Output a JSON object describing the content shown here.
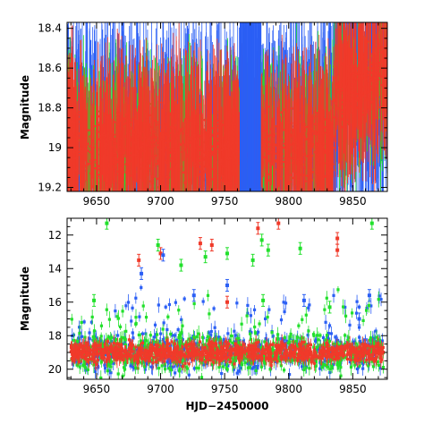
{
  "colors": {
    "red": "#f03a2a",
    "green": "#22e02c",
    "blue": "#2b5ff5"
  },
  "chart_data": [
    {
      "type": "scatter",
      "panel": "top",
      "xlabel": "",
      "ylabel": "Magnitude",
      "xlim": [
        9627,
        9877
      ],
      "ylim": [
        18.37,
        19.22
      ],
      "y_inverted": true,
      "x_ticks": [
        9650,
        9700,
        9750,
        9800,
        9850
      ],
      "x_tick_labels": [
        "9650",
        "9700",
        "9750",
        "9800",
        "9850"
      ],
      "y_ticks": [
        18.4,
        18.6,
        18.8,
        19,
        19.2
      ],
      "y_tick_labels": [
        "18.4",
        "18.6",
        "18.8",
        "19",
        "19.2"
      ],
      "grid": false,
      "legend": "none",
      "series": [
        {
          "color": "red",
          "x": [
            9628,
            9655,
            9680,
            9700,
            9720,
            9740,
            9760,
            9780,
            9800,
            9820,
            9840,
            9855,
            9870
          ],
          "y": [
            19.05,
            18.98,
            19.0,
            19.02,
            18.97,
            18.92,
            19.0,
            18.95,
            18.88,
            18.9,
            18.75,
            18.7,
            18.75
          ]
        },
        {
          "color": "green",
          "x": [
            9630,
            9660,
            9690,
            9710,
            9735,
            9760,
            9790,
            9815,
            9845,
            9870
          ],
          "y": [
            19.1,
            19.0,
            18.9,
            18.85,
            18.8,
            19.05,
            18.7,
            18.8,
            18.65,
            18.6
          ]
        },
        {
          "color": "blue",
          "x": [
            9632,
            9665,
            9695,
            9725,
            9755,
            9775,
            9800,
            9830,
            9860
          ],
          "y": [
            19.0,
            18.9,
            18.8,
            18.7,
            18.75,
            18.6,
            18.85,
            18.9,
            18.9
          ]
        }
      ]
    },
    {
      "type": "scatter",
      "panel": "bottom",
      "xlabel": "HJD−2450000",
      "ylabel": "Magnitude",
      "xlim": [
        9627,
        9877
      ],
      "ylim": [
        11,
        20.6
      ],
      "y_inverted": true,
      "x_ticks": [
        9650,
        9700,
        9750,
        9800,
        9850
      ],
      "x_tick_labels": [
        "9650",
        "9700",
        "9750",
        "9800",
        "9850"
      ],
      "y_ticks": [
        12,
        14,
        16,
        18,
        20
      ],
      "y_tick_labels": [
        "12",
        "14",
        "16",
        "18",
        "20"
      ],
      "grid": false,
      "legend": "none",
      "outliers": [
        {
          "color": "green",
          "x": 9658,
          "y": 11.3
        },
        {
          "color": "red",
          "x": 9683,
          "y": 13.5
        },
        {
          "color": "blue",
          "x": 9685,
          "y": 14.3
        },
        {
          "color": "green",
          "x": 9698,
          "y": 12.6
        },
        {
          "color": "red",
          "x": 9700,
          "y": 13.1
        },
        {
          "color": "blue",
          "x": 9702,
          "y": 13.2
        },
        {
          "color": "green",
          "x": 9716,
          "y": 13.8
        },
        {
          "color": "red",
          "x": 9731,
          "y": 12.5
        },
        {
          "color": "green",
          "x": 9735,
          "y": 13.3
        },
        {
          "color": "red",
          "x": 9740,
          "y": 12.6
        },
        {
          "color": "green",
          "x": 9752,
          "y": 13.1
        },
        {
          "color": "blue",
          "x": 9752,
          "y": 15.0
        },
        {
          "color": "green",
          "x": 9772,
          "y": 13.5
        },
        {
          "color": "red",
          "x": 9776,
          "y": 11.6
        },
        {
          "color": "green",
          "x": 9779,
          "y": 12.3
        },
        {
          "color": "green",
          "x": 9784,
          "y": 12.9
        },
        {
          "color": "red",
          "x": 9792,
          "y": 11.3
        },
        {
          "color": "green",
          "x": 9809,
          "y": 12.8
        },
        {
          "color": "red",
          "x": 9838,
          "y": 12.2
        },
        {
          "color": "red",
          "x": 9838,
          "y": 12.9
        },
        {
          "color": "green",
          "x": 9865,
          "y": 11.3
        },
        {
          "color": "blue",
          "x": 9863,
          "y": 15.6
        },
        {
          "color": "green",
          "x": 9648,
          "y": 15.9
        },
        {
          "color": "blue",
          "x": 9726,
          "y": 15.6
        },
        {
          "color": "red",
          "x": 9752,
          "y": 16.0
        },
        {
          "color": "green",
          "x": 9780,
          "y": 15.9
        },
        {
          "color": "blue",
          "x": 9812,
          "y": 15.9
        },
        {
          "color": "green",
          "x": 9832,
          "y": 16.3
        },
        {
          "color": "blue",
          "x": 9855,
          "y": 17.0
        }
      ]
    }
  ]
}
